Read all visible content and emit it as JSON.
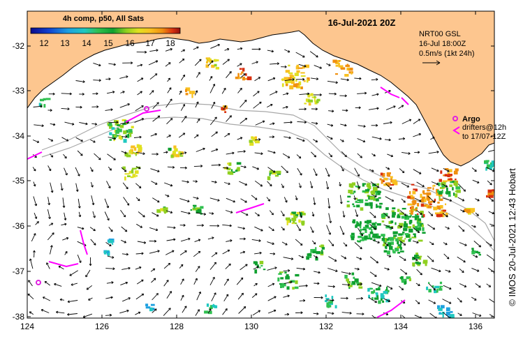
{
  "title": "16-Jul-2021 20Z",
  "colorbar": {
    "label": "4h comp, p50, All Sats",
    "ticks": [
      "12",
      "13",
      "14",
      "15",
      "16",
      "17",
      "18"
    ],
    "colors": [
      "#0a0a8c",
      "#1040d0",
      "#1ea0e0",
      "#20c8c0",
      "#30c050",
      "#10a030",
      "#90d020",
      "#e0e020",
      "#f8c020",
      "#f09010",
      "#d83010",
      "#901010"
    ]
  },
  "legend": {
    "source": "NRT00 GSL",
    "time": "16-Jul 18:00Z",
    "scale": "0.5m/s (1kt 24h)",
    "argo_label": "Argo",
    "drifters_line1": "drifters@12h",
    "drifters_line2": "to 17/07-12Z"
  },
  "axes": {
    "lon_ticks": [
      "124",
      "126",
      "128",
      "130",
      "132",
      "134",
      "136"
    ],
    "lat_ticks": [
      "-32",
      "-33",
      "-34",
      "-35",
      "-36",
      "-37",
      "-38"
    ],
    "lon_range": [
      124,
      136.5
    ],
    "lat_range": [
      -31.4,
      -38.1
    ]
  },
  "credit": "© IMOS 20-Jul-2021 12:43 Hobart",
  "colors": {
    "land": "#fdc68f",
    "argo": "#e020e0",
    "drifter": "#ff00ff",
    "bathy": "#a8a8a8"
  }
}
